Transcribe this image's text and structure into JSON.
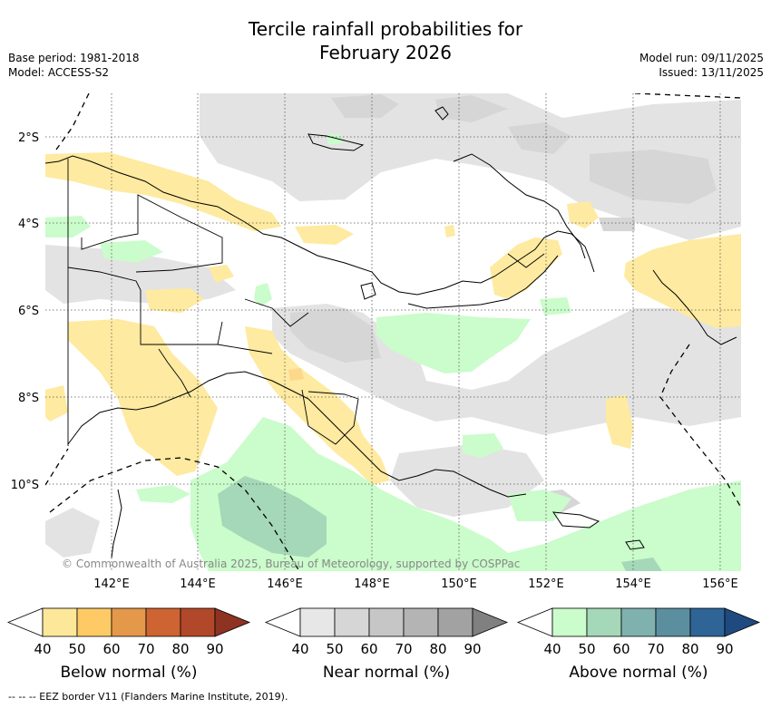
{
  "title_line1": "Tercile rainfall probabilities for",
  "title_line2": "February 2026",
  "base_period": "Base period: 1981-2018",
  "model": "Model: ACCESS-S2",
  "model_run": "Model run: 09/11/2025",
  "issued": "Issued: 13/11/2025",
  "lat_labels": [
    "2°S",
    "4°S",
    "6°S",
    "8°S",
    "10°S"
  ],
  "lon_labels": [
    "142°E",
    "144°E",
    "146°E",
    "148°E",
    "150°E",
    "152°E",
    "154°E",
    "156°E"
  ],
  "copyright": "© Commonwealth of Australia 2025, Bureau of Meteorology, supported by COSPPac",
  "footer": "-- --  -- EEZ border V11 (Flanders Marine Institute, 2019).",
  "colorbars": [
    {
      "label": "Below normal (%)",
      "ticks": [
        "40",
        "50",
        "60",
        "70",
        "80",
        "90"
      ],
      "colors": [
        "#ffffff",
        "#fde89a",
        "#fdca66",
        "#e4984a",
        "#cd6432",
        "#b2482a",
        "#8e3222"
      ]
    },
    {
      "label": "Near normal (%)",
      "ticks": [
        "40",
        "50",
        "60",
        "70",
        "80",
        "90"
      ],
      "colors": [
        "#ffffff",
        "#e7e7e7",
        "#d6d6d6",
        "#c6c6c6",
        "#b4b4b4",
        "#a2a2a2",
        "#808080"
      ]
    },
    {
      "label": "Above normal (%)",
      "ticks": [
        "40",
        "50",
        "60",
        "70",
        "80",
        "90"
      ],
      "colors": [
        "#ffffff",
        "#cbfccb",
        "#a4d8b8",
        "#7fb2ae",
        "#5b8fa0",
        "#2f6496",
        "#1f4a80"
      ]
    }
  ]
}
